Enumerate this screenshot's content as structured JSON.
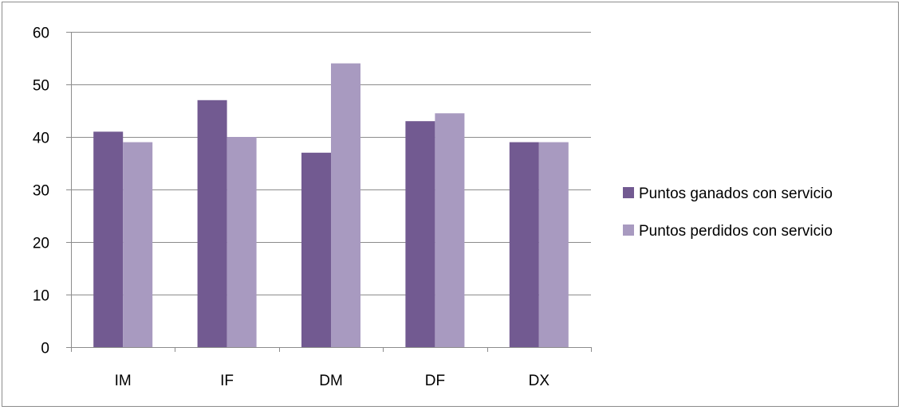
{
  "chart_data": {
    "type": "bar",
    "title": "",
    "xlabel": "",
    "ylabel": "",
    "categories": [
      "IM",
      "IF",
      "DM",
      "DF",
      "DX"
    ],
    "series": [
      {
        "name": "Puntos ganados con servicio",
        "color": "#725a91",
        "values": [
          41,
          47,
          37,
          43,
          39
        ]
      },
      {
        "name": "Puntos perdidos con servicio",
        "color": "#a89ac0",
        "values": [
          39,
          40,
          54,
          44.5,
          39
        ]
      }
    ],
    "ylim": [
      0,
      60
    ],
    "yticks": [
      "0",
      "10",
      "20",
      "30",
      "40",
      "50",
      "60"
    ],
    "grid": true,
    "legend_position": "right"
  }
}
